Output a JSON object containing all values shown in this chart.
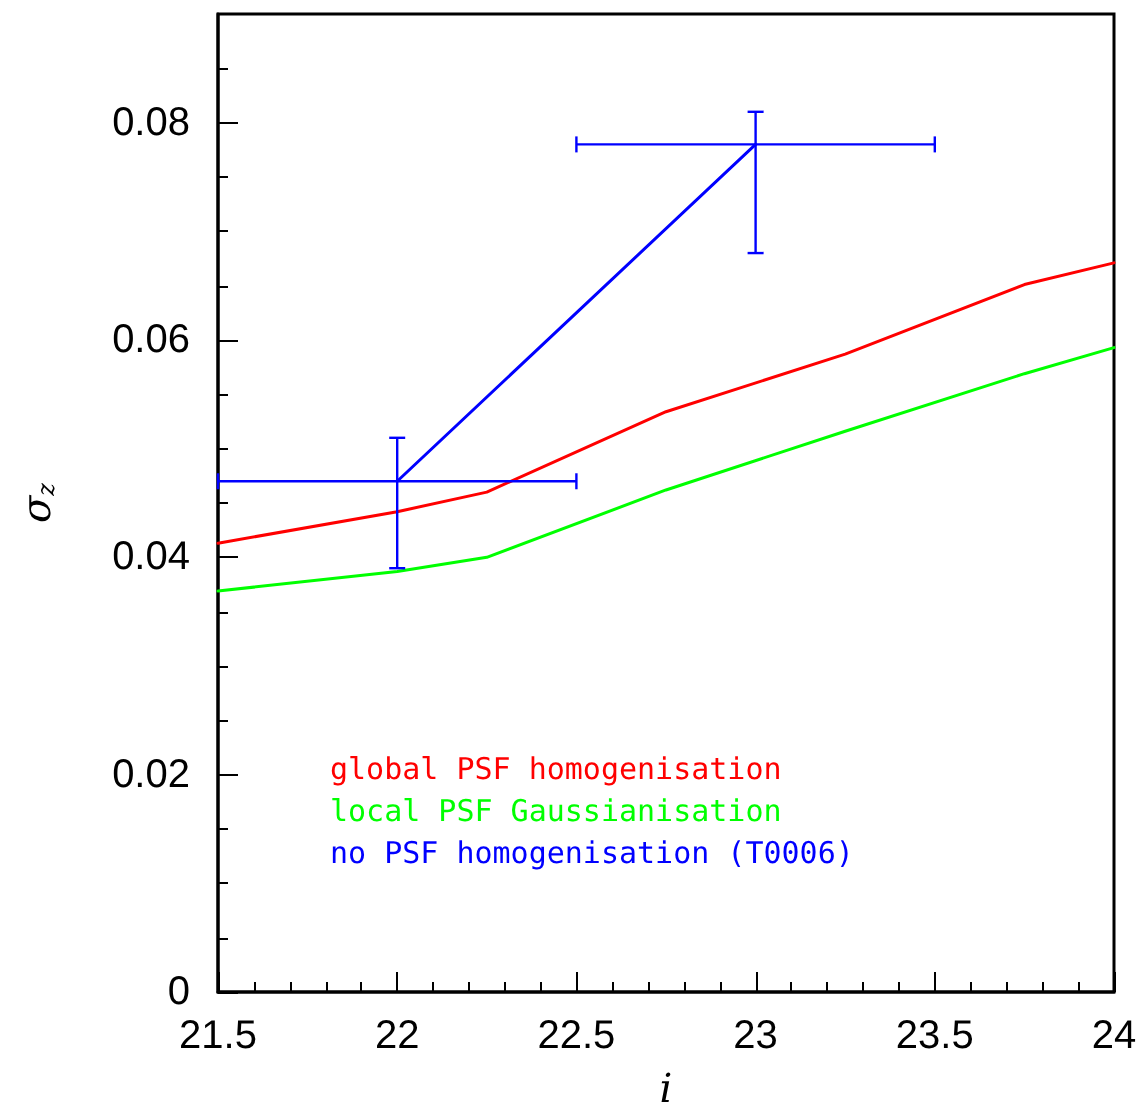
{
  "chart_data": {
    "type": "line",
    "xlabel": "i",
    "ylabel": "σ$_{z}$",
    "xlim": [
      21.5,
      24
    ],
    "xticks": [
      21.5,
      22,
      22.5,
      23,
      23.5,
      24
    ],
    "ylim": [
      0,
      0.09
    ],
    "yticks": [
      0,
      0.02,
      0.04,
      0.06,
      0.08
    ],
    "legend": "bottom left",
    "grid": false,
    "marker": "none",
    "line_style": "solid",
    "series": [
      {
        "name": "global PSF homogenisation",
        "color": "#ff0000",
        "x": [
          21.5,
          22,
          22.25,
          22.75,
          23.25,
          23.75,
          24
        ],
        "values": [
          0.0413,
          0.0442,
          0.046,
          0.0534,
          0.0587,
          0.0651,
          0.0671
        ]
      },
      {
        "name": "local PSF Gaussianisation",
        "color": "#00ff00",
        "x": [
          21.5,
          22,
          22.25,
          22.75,
          23.25,
          23.75,
          24
        ],
        "values": [
          0.0369,
          0.0387,
          0.04,
          0.0462,
          0.0516,
          0.0569,
          0.0593
        ]
      },
      {
        "name": "no PSF homogenisation (T0006)",
        "color": "#0000ff",
        "x": [
          22,
          23
        ],
        "values": [
          0.047,
          0.078
        ],
        "errors": [
          [
            0.039,
            0.051
          ],
          [
            0.068,
            0.081
          ]
        ],
        "xerrors": [
          0.5,
          0.5
        ]
      }
    ]
  }
}
